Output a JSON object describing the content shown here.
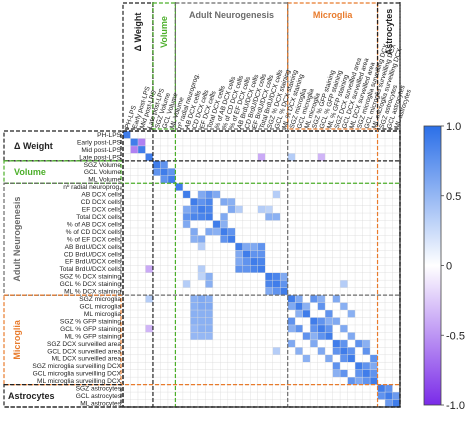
{
  "chart_data": {
    "type": "heatmap",
    "rows": [
      "PH-LPS",
      "Early post-LPS",
      "Mid post-LPS",
      "Late post-LPS",
      "SGZ Volume",
      "GCL Volume",
      "ML Volume",
      "nº radial neuroprog.",
      "AB DCX cells",
      "CD DCX cells",
      "EF DCX cells",
      "Total DCX cells",
      "% of AB DCX cells",
      "% of CD DCX cells",
      "% of EF DCX cells",
      "AB BrdU/DCX cells",
      "CD BrdU/DCX cells",
      "EF BrdU/DCX cells",
      "Total BrdU/DCX cells",
      "SGZ % DCX staining",
      "GCL % DCX staining",
      "ML % DCX staining",
      "SGZ microglia",
      "GCL microglia",
      "ML microglia",
      "SGZ % GFP staining",
      "GCL % GFP staining",
      "ML % GFP staining",
      "SGZ DCX surveilled area",
      "GCL DCX surveilled area",
      "ML DCX surveilled area",
      "SGZ microglia surveilling DCX",
      "GCL microglia surveilling DCX",
      "ML microglia surveilling DCX",
      "SGZ astrocytes",
      "GCL astrocytes",
      "ML astrocytes"
    ],
    "columns": [
      "PH-LPS",
      "Early post-LPS",
      "Mid post-LPS",
      "Late post-LPS",
      "SGZ Volume",
      "GCL Volume",
      "ML Volume",
      "nº radial neuroprog.",
      "AB DCX cells",
      "CD DCX cells",
      "EF DCX cells",
      "Total DCX cells",
      "% of AB DCX cells",
      "% of CD DCX cells",
      "% of EF DCX cells",
      "AB BrdU/DCX cells",
      "CD BrdU/DCX cells",
      "EF BrdU/DCX cells",
      "Total BrdU/DCX cells",
      "SGZ % DCX staining",
      "GCL % DCX staining",
      "ML % DCX staining",
      "SGZ microglia",
      "GCL microglia",
      "ML microglia",
      "SGZ % GFP staining",
      "GCL % GFP staining",
      "ML % GFP staining",
      "SGZ DCX surveilled area",
      "GCL DCX surveilled area",
      "ML DCX surveilled area",
      "SGZ microglia surveilling DCX",
      "GCL microglia surveilling DCX",
      "ML microglia surveilling DCX",
      "SGZ astrocytes",
      "GCL astrocytes",
      "ML astrocytes"
    ],
    "groups": [
      {
        "name": "Δ Weight",
        "start": 0,
        "end": 3,
        "color": "#222222"
      },
      {
        "name": "Volume",
        "start": 4,
        "end": 6,
        "color": "#4caf2a"
      },
      {
        "name": "Adult Neurogenesis",
        "start": 7,
        "end": 21,
        "color": "#6b6b6b"
      },
      {
        "name": "Microglia",
        "start": 22,
        "end": 33,
        "color": "#e87b2c"
      },
      {
        "name": "Astrocytes",
        "start": 34,
        "end": 36,
        "color": "#222222"
      }
    ],
    "significant_cells": [
      {
        "r": 1,
        "c": 2,
        "v": -0.6
      },
      {
        "r": 2,
        "c": 1,
        "v": -0.6
      },
      {
        "r": 3,
        "c": 18,
        "v": -0.4
      },
      {
        "r": 3,
        "c": 22,
        "v": 0.35
      },
      {
        "r": 3,
        "c": 26,
        "v": -0.35
      },
      {
        "r": 4,
        "c": 5,
        "v": 0.75
      },
      {
        "r": 5,
        "c": 4,
        "v": 0.75
      },
      {
        "r": 5,
        "c": 6,
        "v": 0.75
      },
      {
        "r": 6,
        "c": 5,
        "v": 0.75
      },
      {
        "r": 8,
        "c": 10,
        "v": 0.6
      },
      {
        "r": 8,
        "c": 11,
        "v": 0.75
      },
      {
        "r": 8,
        "c": 12,
        "v": 0.6
      },
      {
        "r": 8,
        "c": 20,
        "v": 0.35
      },
      {
        "r": 9,
        "c": 10,
        "v": 0.75
      },
      {
        "r": 9,
        "c": 11,
        "v": 0.85
      },
      {
        "r": 9,
        "c": 13,
        "v": 0.6
      },
      {
        "r": 9,
        "c": 14,
        "v": 0.55
      },
      {
        "r": 10,
        "c": 8,
        "v": 0.6
      },
      {
        "r": 10,
        "c": 9,
        "v": 0.75
      },
      {
        "r": 10,
        "c": 11,
        "v": 0.85
      },
      {
        "r": 10,
        "c": 14,
        "v": 0.6
      },
      {
        "r": 10,
        "c": 15,
        "v": 0.35
      },
      {
        "r": 10,
        "c": 18,
        "v": 0.35
      },
      {
        "r": 10,
        "c": 19,
        "v": 0.3
      },
      {
        "r": 11,
        "c": 8,
        "v": 0.75
      },
      {
        "r": 11,
        "c": 9,
        "v": 0.85
      },
      {
        "r": 11,
        "c": 10,
        "v": 0.85
      },
      {
        "r": 11,
        "c": 13,
        "v": 0.6
      },
      {
        "r": 11,
        "c": 19,
        "v": 0.55
      },
      {
        "r": 11,
        "c": 20,
        "v": 0.55
      },
      {
        "r": 12,
        "c": 8,
        "v": 0.6
      },
      {
        "r": 12,
        "c": 13,
        "v": 0.55
      },
      {
        "r": 13,
        "c": 9,
        "v": 0.6
      },
      {
        "r": 13,
        "c": 11,
        "v": 0.6
      },
      {
        "r": 13,
        "c": 12,
        "v": 0.55
      },
      {
        "r": 13,
        "c": 14,
        "v": 0.75
      },
      {
        "r": 14,
        "c": 9,
        "v": 0.55
      },
      {
        "r": 14,
        "c": 10,
        "v": 0.6
      },
      {
        "r": 14,
        "c": 13,
        "v": 0.75
      },
      {
        "r": 15,
        "c": 10,
        "v": 0.35
      },
      {
        "r": 15,
        "c": 16,
        "v": 0.6
      },
      {
        "r": 15,
        "c": 17,
        "v": 0.6
      },
      {
        "r": 15,
        "c": 18,
        "v": 0.75
      },
      {
        "r": 16,
        "c": 15,
        "v": 0.6
      },
      {
        "r": 16,
        "c": 17,
        "v": 0.75
      },
      {
        "r": 16,
        "c": 18,
        "v": 0.75
      },
      {
        "r": 17,
        "c": 15,
        "v": 0.6
      },
      {
        "r": 17,
        "c": 16,
        "v": 0.75
      },
      {
        "r": 17,
        "c": 18,
        "v": 0.85
      },
      {
        "r": 18,
        "c": 3,
        "v": -0.4
      },
      {
        "r": 18,
        "c": 10,
        "v": 0.35
      },
      {
        "r": 18,
        "c": 15,
        "v": 0.75
      },
      {
        "r": 18,
        "c": 16,
        "v": 0.75
      },
      {
        "r": 18,
        "c": 17,
        "v": 0.85
      },
      {
        "r": 19,
        "c": 10,
        "v": 0.3
      },
      {
        "r": 19,
        "c": 11,
        "v": 0.55
      },
      {
        "r": 19,
        "c": 20,
        "v": 0.85
      },
      {
        "r": 19,
        "c": 21,
        "v": 0.6
      },
      {
        "r": 20,
        "c": 8,
        "v": 0.35
      },
      {
        "r": 20,
        "c": 11,
        "v": 0.55
      },
      {
        "r": 20,
        "c": 19,
        "v": 0.85
      },
      {
        "r": 20,
        "c": 21,
        "v": 0.75
      },
      {
        "r": 20,
        "c": 29,
        "v": 0.35
      },
      {
        "r": 21,
        "c": 19,
        "v": 0.6
      },
      {
        "r": 21,
        "c": 20,
        "v": 0.75
      },
      {
        "r": 22,
        "c": 3,
        "v": 0.35
      },
      {
        "r": 22,
        "c": 9,
        "v": 0.55
      },
      {
        "r": 22,
        "c": 10,
        "v": 0.6
      },
      {
        "r": 22,
        "c": 11,
        "v": 0.55
      },
      {
        "r": 22,
        "c": 23,
        "v": 0.6
      },
      {
        "r": 22,
        "c": 25,
        "v": 0.75
      },
      {
        "r": 22,
        "c": 26,
        "v": 0.55
      },
      {
        "r": 22,
        "c": 28,
        "v": 0.6
      },
      {
        "r": 23,
        "c": 9,
        "v": 0.55
      },
      {
        "r": 23,
        "c": 10,
        "v": 0.6
      },
      {
        "r": 23,
        "c": 11,
        "v": 0.6
      },
      {
        "r": 23,
        "c": 22,
        "v": 0.6
      },
      {
        "r": 23,
        "c": 24,
        "v": 0.55
      },
      {
        "r": 23,
        "c": 26,
        "v": 0.75
      },
      {
        "r": 23,
        "c": 29,
        "v": 0.55
      },
      {
        "r": 24,
        "c": 9,
        "v": 0.55
      },
      {
        "r": 24,
        "c": 10,
        "v": 0.55
      },
      {
        "r": 24,
        "c": 11,
        "v": 0.55
      },
      {
        "r": 24,
        "c": 23,
        "v": 0.55
      },
      {
        "r": 24,
        "c": 27,
        "v": 0.75
      },
      {
        "r": 24,
        "c": 30,
        "v": 0.55
      },
      {
        "r": 25,
        "c": 9,
        "v": 0.55
      },
      {
        "r": 25,
        "c": 10,
        "v": 0.55
      },
      {
        "r": 25,
        "c": 11,
        "v": 0.55
      },
      {
        "r": 25,
        "c": 22,
        "v": 0.75
      },
      {
        "r": 25,
        "c": 26,
        "v": 0.75
      },
      {
        "r": 25,
        "c": 27,
        "v": 0.55
      },
      {
        "r": 25,
        "c": 28,
        "v": 0.6
      },
      {
        "r": 26,
        "c": 3,
        "v": -0.35
      },
      {
        "r": 26,
        "c": 9,
        "v": 0.5
      },
      {
        "r": 26,
        "c": 10,
        "v": 0.55
      },
      {
        "r": 26,
        "c": 11,
        "v": 0.55
      },
      {
        "r": 26,
        "c": 22,
        "v": 0.55
      },
      {
        "r": 26,
        "c": 23,
        "v": 0.75
      },
      {
        "r": 26,
        "c": 25,
        "v": 0.75
      },
      {
        "r": 26,
        "c": 27,
        "v": 0.75
      },
      {
        "r": 26,
        "c": 29,
        "v": 0.6
      },
      {
        "r": 27,
        "c": 9,
        "v": 0.5
      },
      {
        "r": 27,
        "c": 10,
        "v": 0.5
      },
      {
        "r": 27,
        "c": 11,
        "v": 0.5
      },
      {
        "r": 27,
        "c": 24,
        "v": 0.75
      },
      {
        "r": 27,
        "c": 25,
        "v": 0.55
      },
      {
        "r": 27,
        "c": 26,
        "v": 0.75
      },
      {
        "r": 27,
        "c": 30,
        "v": 0.6
      },
      {
        "r": 28,
        "c": 22,
        "v": 0.6
      },
      {
        "r": 28,
        "c": 25,
        "v": 0.6
      },
      {
        "r": 28,
        "c": 29,
        "v": 0.75
      },
      {
        "r": 28,
        "c": 31,
        "v": 0.75
      },
      {
        "r": 28,
        "c": 32,
        "v": 0.55
      },
      {
        "r": 29,
        "c": 20,
        "v": 0.35
      },
      {
        "r": 29,
        "c": 23,
        "v": 0.55
      },
      {
        "r": 29,
        "c": 26,
        "v": 0.6
      },
      {
        "r": 29,
        "c": 28,
        "v": 0.75
      },
      {
        "r": 29,
        "c": 30,
        "v": 0.75
      },
      {
        "r": 29,
        "c": 32,
        "v": 0.75
      },
      {
        "r": 30,
        "c": 24,
        "v": 0.55
      },
      {
        "r": 30,
        "c": 27,
        "v": 0.6
      },
      {
        "r": 30,
        "c": 29,
        "v": 0.75
      },
      {
        "r": 30,
        "c": 33,
        "v": 0.75
      },
      {
        "r": 31,
        "c": 28,
        "v": 0.75
      },
      {
        "r": 31,
        "c": 32,
        "v": 0.75
      },
      {
        "r": 31,
        "c": 33,
        "v": 0.6
      },
      {
        "r": 32,
        "c": 28,
        "v": 0.55
      },
      {
        "r": 32,
        "c": 29,
        "v": 0.75
      },
      {
        "r": 32,
        "c": 31,
        "v": 0.75
      },
      {
        "r": 32,
        "c": 33,
        "v": 0.75
      },
      {
        "r": 33,
        "c": 30,
        "v": 0.75
      },
      {
        "r": 33,
        "c": 31,
        "v": 0.6
      },
      {
        "r": 33,
        "c": 32,
        "v": 0.75
      },
      {
        "r": 34,
        "c": 35,
        "v": 0.75
      },
      {
        "r": 35,
        "c": 34,
        "v": 0.75
      },
      {
        "r": 35,
        "c": 36,
        "v": 0.7
      },
      {
        "r": 36,
        "c": 35,
        "v": 0.7
      }
    ],
    "colorbar": {
      "range": [
        -1.0,
        1.0
      ],
      "ticks": [
        "1.0",
        "0.5",
        "0",
        "-0.5",
        "-1.0"
      ],
      "colors": {
        "positive": "#2b6fe8",
        "zero": "#ffffff",
        "negative": "#7a2be8"
      }
    },
    "grid": true
  }
}
